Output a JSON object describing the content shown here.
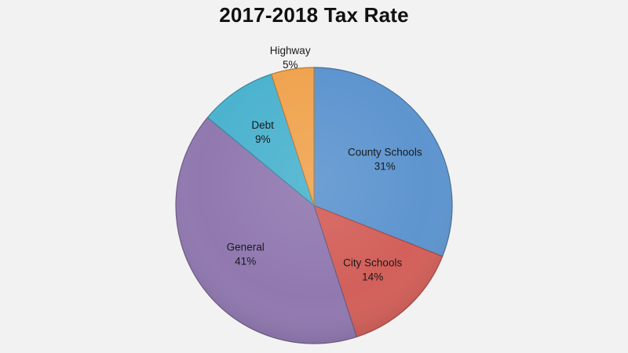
{
  "chart_data": {
    "type": "pie",
    "title": "2017-2018 Tax Rate",
    "slices": [
      {
        "label": "County Schools",
        "percent_label": "31%",
        "value": 31,
        "color": "#5e95cf"
      },
      {
        "label": "City Schools",
        "percent_label": "14%",
        "value": 14,
        "color": "#d3605a"
      },
      {
        "label": "General",
        "percent_label": "41%",
        "value": 41,
        "color": "#9179b0"
      },
      {
        "label": "Debt",
        "percent_label": "9%",
        "value": 9,
        "color": "#4cb3cf"
      },
      {
        "label": "Highway",
        "percent_label": "5%",
        "value": 5,
        "color": "#f0a450"
      }
    ],
    "start_angle_deg": 0,
    "direction": "clockwise",
    "legend": "none"
  }
}
